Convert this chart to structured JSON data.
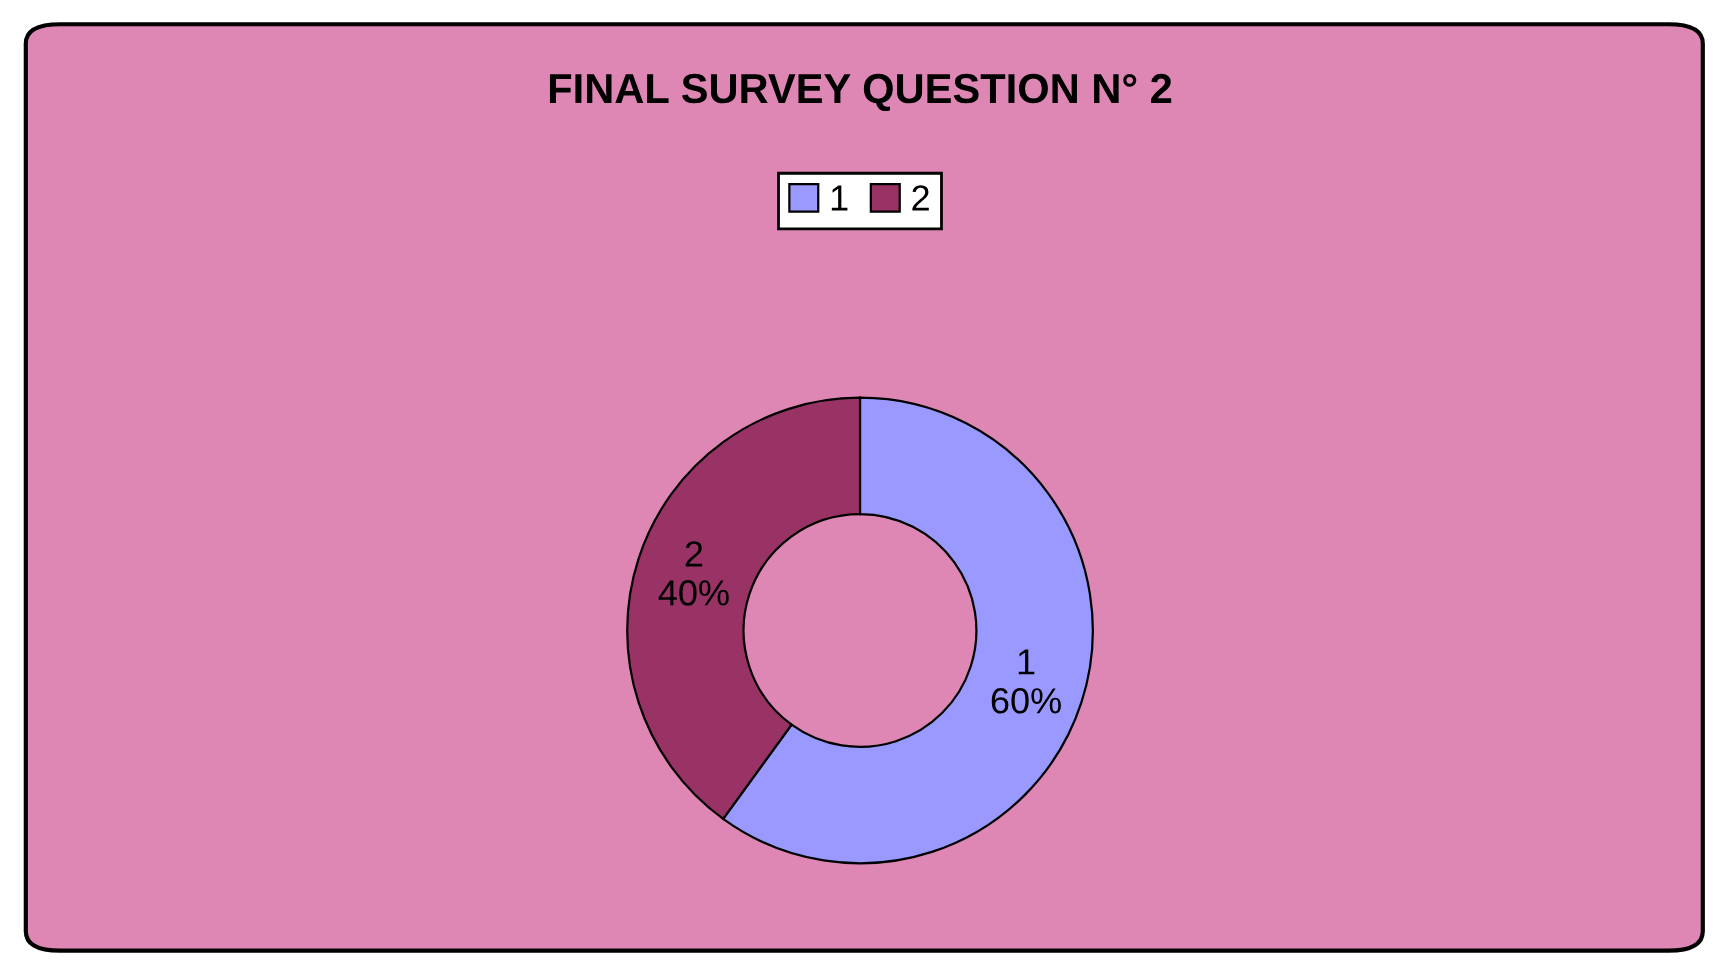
{
  "chart_data": {
    "type": "donut",
    "title": "FINAL SURVEY QUESTION N° 2",
    "categories": [
      "1",
      "2"
    ],
    "values": [
      60,
      40
    ],
    "colors": [
      "#9999ff",
      "#993366"
    ],
    "value_labels": [
      "60%",
      "40%"
    ],
    "legend": "top"
  }
}
